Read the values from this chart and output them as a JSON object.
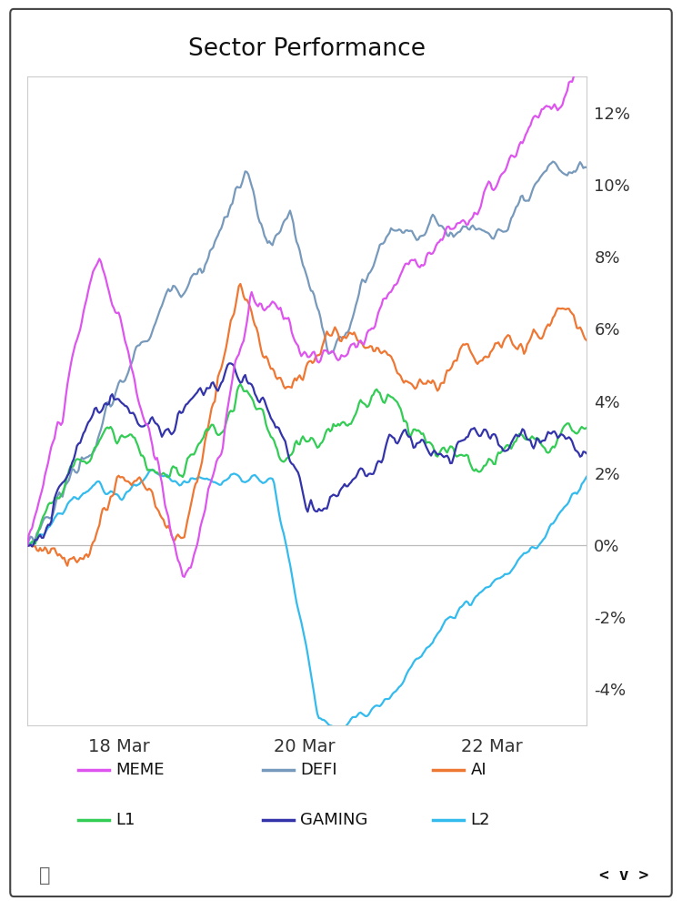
{
  "title": "Sector Performance",
  "title_fontsize": 19,
  "background_color": "#ffffff",
  "plot_bg": "#ffffff",
  "frame_color": "#cccccc",
  "yticks": [
    -4,
    -2,
    0,
    2,
    4,
    6,
    8,
    10,
    12
  ],
  "ylim": [
    -5,
    13
  ],
  "xtick_labels": [
    "18 Mar",
    "20 Mar",
    "22 Mar"
  ],
  "legend": [
    {
      "label": "MEME",
      "color": "#dd55ee"
    },
    {
      "label": "DEFI",
      "color": "#7799bb"
    },
    {
      "label": "AI",
      "color": "#ee7733"
    },
    {
      "label": "L1",
      "color": "#33cc55"
    },
    {
      "label": "GAMING",
      "color": "#3333aa"
    },
    {
      "label": "L2",
      "color": "#33bbee"
    }
  ],
  "line_width": 1.6
}
